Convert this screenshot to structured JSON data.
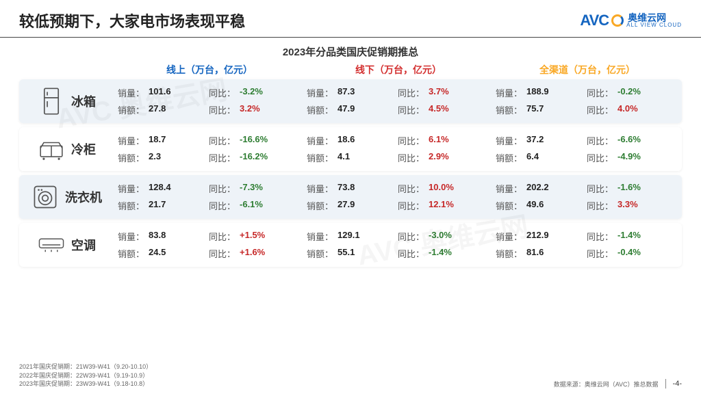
{
  "header": {
    "title": "较低预期下，大家电市场表现平稳",
    "logo_avc": "AVC",
    "logo_cn": "奥维云网",
    "logo_en": "ALL VIEW CLOUD"
  },
  "subtitle": "2023年分品类国庆促销期推总",
  "column_headers": {
    "online": "线上（万台，亿元）",
    "offline": "线下（万台，亿元）",
    "all": "全渠道（万台，亿元）"
  },
  "labels": {
    "volume": "销量：",
    "revenue": "销额：",
    "yoy": "同比："
  },
  "categories": [
    {
      "name": "冰箱",
      "icon": "fridge",
      "online": {
        "volume": "101.6",
        "vol_yoy": "-3.2%",
        "vol_sign": "neg",
        "revenue": "27.8",
        "rev_yoy": "3.2%",
        "rev_sign": "pos"
      },
      "offline": {
        "volume": "87.3",
        "vol_yoy": "3.7%",
        "vol_sign": "pos",
        "revenue": "47.9",
        "rev_yoy": "4.5%",
        "rev_sign": "pos"
      },
      "all": {
        "volume": "188.9",
        "vol_yoy": "-0.2%",
        "vol_sign": "neg",
        "revenue": "75.7",
        "rev_yoy": "4.0%",
        "rev_sign": "pos"
      }
    },
    {
      "name": "冷柜",
      "icon": "freezer",
      "online": {
        "volume": "18.7",
        "vol_yoy": "-16.6%",
        "vol_sign": "neg",
        "revenue": "2.3",
        "rev_yoy": "-16.2%",
        "rev_sign": "neg"
      },
      "offline": {
        "volume": "18.6",
        "vol_yoy": "6.1%",
        "vol_sign": "pos",
        "revenue": "4.1",
        "rev_yoy": "2.9%",
        "rev_sign": "pos"
      },
      "all": {
        "volume": "37.2",
        "vol_yoy": "-6.6%",
        "vol_sign": "neg",
        "revenue": "6.4",
        "rev_yoy": "-4.9%",
        "rev_sign": "neg"
      }
    },
    {
      "name": "洗衣机",
      "icon": "washer",
      "online": {
        "volume": "128.4",
        "vol_yoy": "-7.3%",
        "vol_sign": "neg",
        "revenue": "21.7",
        "rev_yoy": "-6.1%",
        "rev_sign": "neg"
      },
      "offline": {
        "volume": "73.8",
        "vol_yoy": "10.0%",
        "vol_sign": "pos",
        "revenue": "27.9",
        "rev_yoy": "12.1%",
        "rev_sign": "pos"
      },
      "all": {
        "volume": "202.2",
        "vol_yoy": "-1.6%",
        "vol_sign": "neg",
        "revenue": "49.6",
        "rev_yoy": "3.3%",
        "rev_sign": "pos"
      }
    },
    {
      "name": "空调",
      "icon": "ac",
      "online": {
        "volume": "83.8",
        "vol_yoy": "+1.5%",
        "vol_sign": "pos",
        "revenue": "24.5",
        "rev_yoy": "+1.6%",
        "rev_sign": "pos"
      },
      "offline": {
        "volume": "129.1",
        "vol_yoy": "-3.0%",
        "vol_sign": "neg",
        "revenue": "55.1",
        "rev_yoy": "-1.4%",
        "rev_sign": "neg"
      },
      "all": {
        "volume": "212.9",
        "vol_yoy": "-1.4%",
        "vol_sign": "neg",
        "revenue": "81.6",
        "rev_yoy": "-0.4%",
        "rev_sign": "neg"
      }
    }
  ],
  "footnotes": [
    "2021年国庆促销期：21W39-W41（9.20-10.10）",
    "2022年国庆促销期：22W39-W41（9.19-10.9）",
    "2023年国庆促销期：23W39-W41（9.18-10.8）"
  ],
  "source": "数据来源：奥维云网（AVC）推总数据",
  "page_num": "-4-",
  "colors": {
    "online": "#1565c0",
    "offline": "#d32f2f",
    "all": "#f9a825",
    "row_even": "#eef3f8",
    "row_odd": "#ffffff",
    "neg": "#2e7d32",
    "pos": "#c62828"
  },
  "icon_svgs": {
    "fridge": "<svg viewBox='0 0 40 48' width='34' height='42'><rect x='8' y='2' width='24' height='44' rx='2' fill='none' stroke='#555' stroke-width='2'/><line x1='8' y1='18' x2='32' y2='18' stroke='#555' stroke-width='2'/><line x1='13' y1='8' x2='13' y2='14' stroke='#555' stroke-width='2'/><line x1='13' y1='24' x2='13' y2='34' stroke='#555' stroke-width='2'/></svg>",
    "freezer": "<svg viewBox='0 0 48 40' width='42' height='36'><rect x='4' y='14' width='40' height='20' rx='2' fill='none' stroke='#555' stroke-width='2'/><path d='M4 18 L10 8 L38 8 L44 18' fill='none' stroke='#555' stroke-width='2'/><line x1='24' y1='14' x2='24' y2='34' stroke='#555' stroke-width='2'/><circle cx='10' cy='38' r='2' fill='#555'/><circle cx='38' cy='38' r='2' fill='#555'/></svg>",
    "washer": "<svg viewBox='0 0 44 44' width='40' height='40'><rect x='4' y='4' width='36' height='36' rx='4' fill='none' stroke='#555' stroke-width='2'/><circle cx='22' cy='24' r='11' fill='none' stroke='#555' stroke-width='2'/><circle cx='22' cy='24' r='5' fill='none' stroke='#555' stroke-width='2'/><circle cx='11' cy='10' r='1.5' fill='#555'/><circle cx='16' cy='10' r='1.5' fill='#555'/></svg>",
    "ac": "<svg viewBox='0 0 52 32' width='46' height='30'><rect x='2' y='4' width='48' height='18' rx='4' fill='none' stroke='#555' stroke-width='2'/><line x1='8' y1='16' x2='44' y2='16' stroke='#555' stroke-width='2'/><line x1='14' y1='26' x2='14' y2='30' stroke='#555' stroke-width='2'/><line x1='26' y1='26' x2='26' y2='30' stroke='#555' stroke-width='2'/><line x1='38' y1='26' x2='38' y2='30' stroke='#555' stroke-width='2'/></svg>"
  }
}
